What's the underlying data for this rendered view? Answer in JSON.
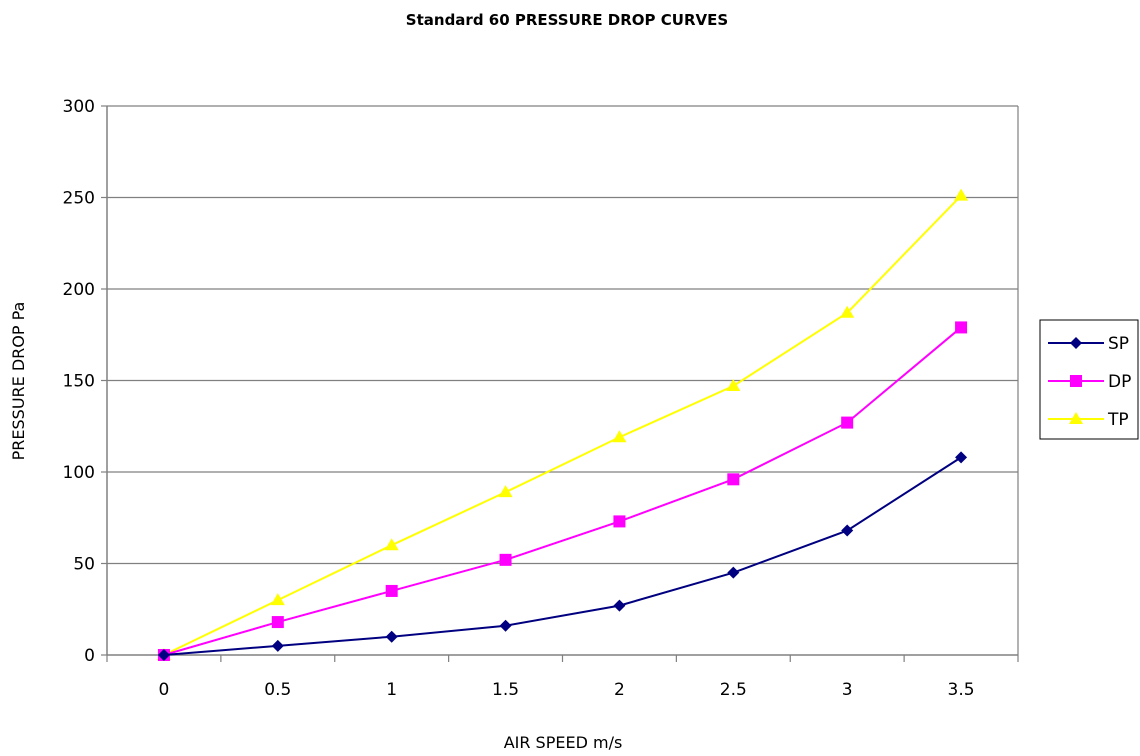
{
  "chart_data": {
    "type": "line",
    "title": "Standard 60 PRESSURE DROP CURVES",
    "xlabel": "AIR SPEED m/s",
    "ylabel": "PRESSURE DROP Pa",
    "categories": [
      "0",
      "0.5",
      "1",
      "1.5",
      "2",
      "2.5",
      "3",
      "3.5"
    ],
    "ylim": [
      0,
      300
    ],
    "yticks": [
      0,
      50,
      100,
      150,
      200,
      250,
      300
    ],
    "grid": "horizontal",
    "legend_position": "right",
    "series": [
      {
        "name": "SP",
        "color": "#000080",
        "marker": "diamond",
        "values": [
          0,
          5,
          10,
          16,
          27,
          45,
          68,
          108
        ]
      },
      {
        "name": "DP",
        "color": "#ff00ff",
        "marker": "square",
        "values": [
          0,
          18,
          35,
          52,
          73,
          96,
          127,
          179
        ]
      },
      {
        "name": "TP",
        "color": "#ffff00",
        "marker": "triangle",
        "values": [
          0,
          30,
          60,
          89,
          119,
          147,
          187,
          251
        ]
      }
    ]
  }
}
